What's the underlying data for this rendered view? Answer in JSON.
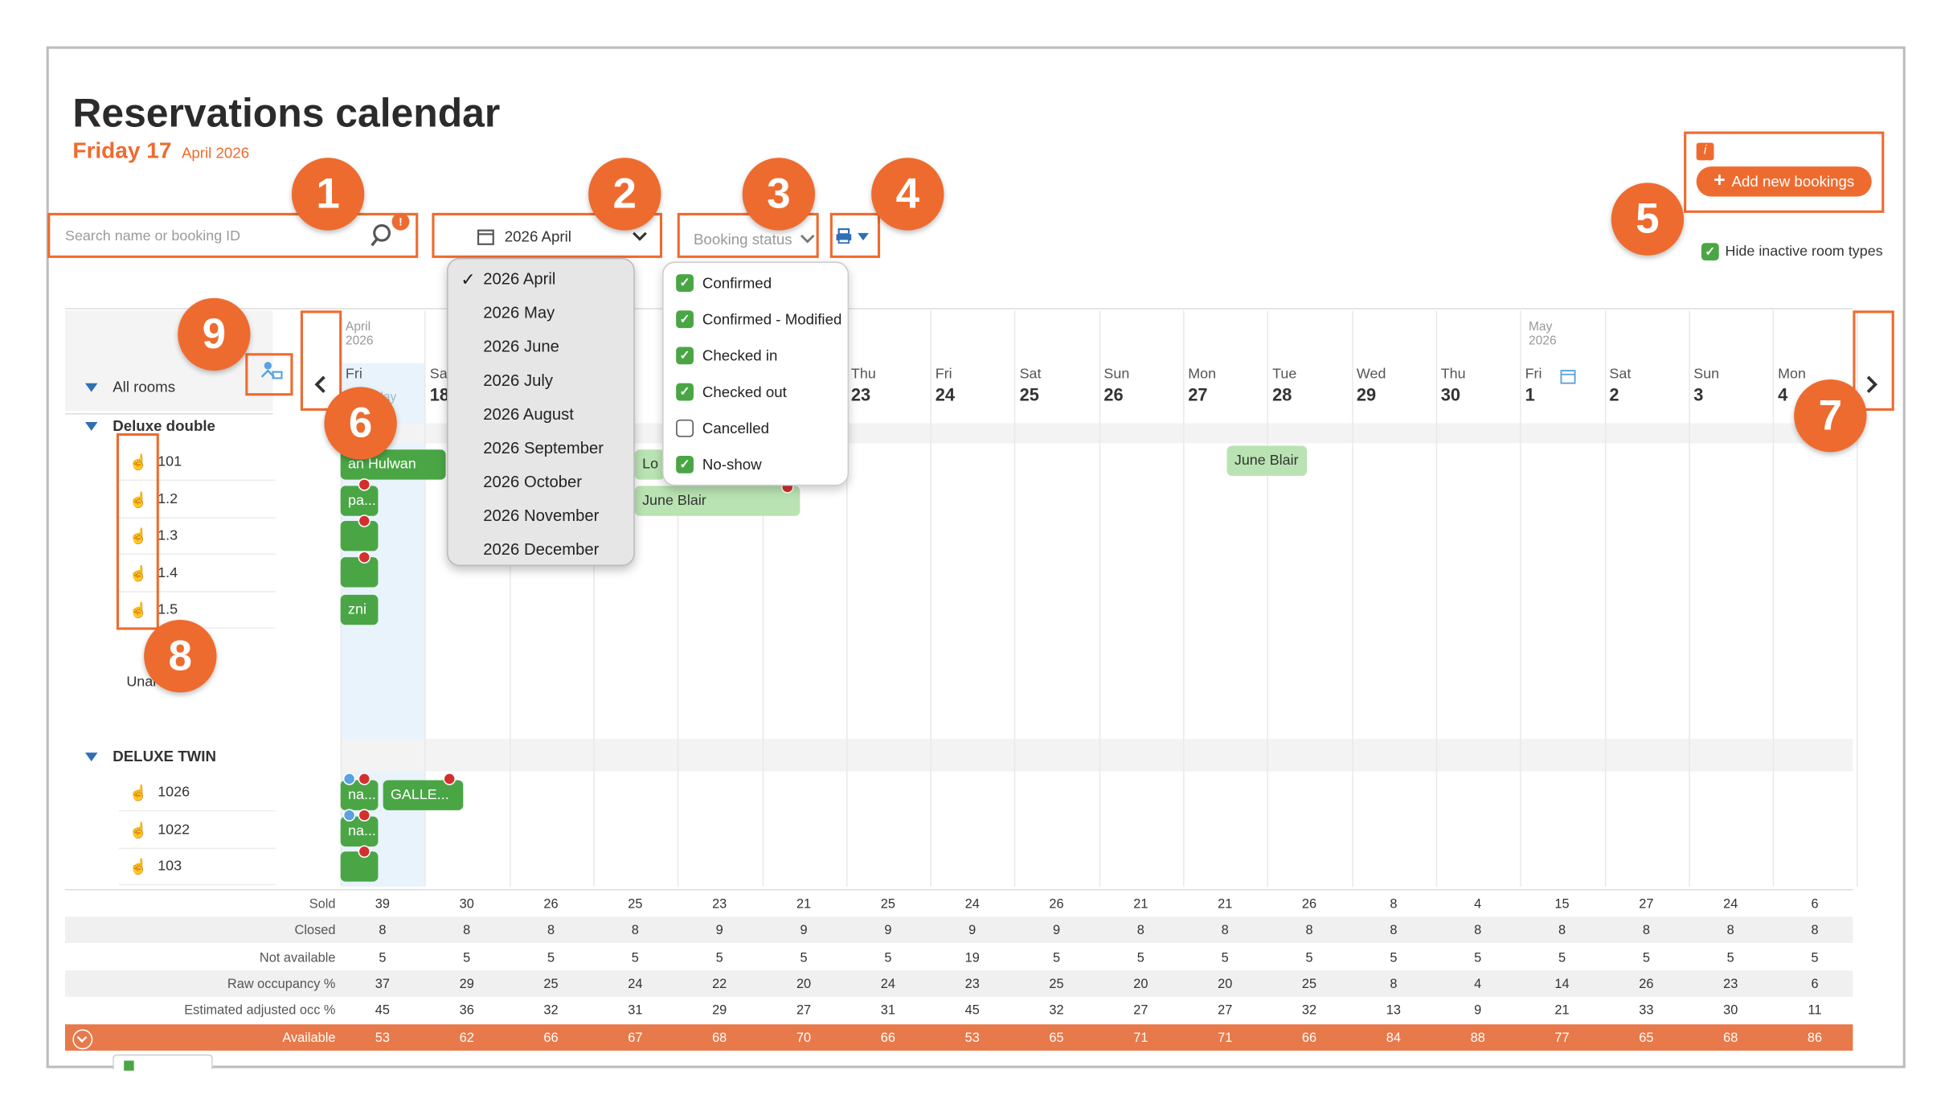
{
  "page": {
    "title": "Reservations calendar",
    "current_day": "Friday 17",
    "current_month": "April 2026"
  },
  "search": {
    "placeholder": "Search name or booking ID",
    "badge": "!"
  },
  "month_select": {
    "value": "2026 April",
    "options": [
      "2026 April",
      "2026 May",
      "2026 June",
      "2026 July",
      "2026 August",
      "2026 September",
      "2026 October",
      "2026 November",
      "2026 December"
    ],
    "selected_mark": "✓"
  },
  "booking_status": {
    "label": "Booking status",
    "options": [
      {
        "label": "Confirmed",
        "checked": true
      },
      {
        "label": "Confirmed - Modified",
        "checked": true
      },
      {
        "label": "Checked in",
        "checked": true
      },
      {
        "label": "Checked out",
        "checked": true
      },
      {
        "label": "Cancelled",
        "checked": false
      },
      {
        "label": "No-show",
        "checked": true
      }
    ]
  },
  "actions": {
    "info_badge": "i",
    "add_bookings": "Add new bookings",
    "hide_inactive": "Hide inactive room types"
  },
  "callouts": [
    "1",
    "2",
    "3",
    "4",
    "5",
    "6",
    "7",
    "8",
    "9"
  ],
  "calendar": {
    "month_left": "April",
    "year_left": "2026",
    "month_right": "May",
    "year_right": "2026",
    "today_sub": "Today",
    "days": [
      {
        "dow": "Fri",
        "num": ""
      },
      {
        "dow": "Sa",
        "num": "18"
      },
      {
        "dow": "",
        "num": ""
      },
      {
        "dow": "",
        "num": ""
      },
      {
        "dow": "",
        "num": ""
      },
      {
        "dow": "",
        "num": ""
      },
      {
        "dow": "Thu",
        "num": "23"
      },
      {
        "dow": "Fri",
        "num": "24"
      },
      {
        "dow": "Sat",
        "num": "25"
      },
      {
        "dow": "Sun",
        "num": "26"
      },
      {
        "dow": "Mon",
        "num": "27"
      },
      {
        "dow": "Tue",
        "num": "28"
      },
      {
        "dow": "Wed",
        "num": "29"
      },
      {
        "dow": "Thu",
        "num": "30"
      },
      {
        "dow": "Fri",
        "num": "1"
      },
      {
        "dow": "Sat",
        "num": "2"
      },
      {
        "dow": "Sun",
        "num": "3"
      },
      {
        "dow": "Mon",
        "num": "4"
      }
    ]
  },
  "rooms": {
    "all_rooms": "All rooms",
    "groups": [
      {
        "name": "Deluxe double",
        "rooms": [
          "101",
          "1.2",
          "1.3",
          "1.4",
          "1.5"
        ],
        "unallocated": "Unal"
      },
      {
        "name": "DELUXE TWIN",
        "rooms": [
          "1026",
          "1022",
          "103"
        ]
      }
    ]
  },
  "bookings": {
    "b1": "an Hulwan",
    "b2": "pa...",
    "b3": "zni",
    "b4": "Lo",
    "b5": "June Blair",
    "b6": "June Blair",
    "b7": "na...",
    "b8": "GALLE...",
    "b9": "na..."
  },
  "stats": {
    "rows": [
      {
        "label": "Sold",
        "values": [
          39,
          30,
          26,
          25,
          23,
          21,
          25,
          24,
          26,
          21,
          21,
          26,
          8,
          4,
          15,
          27,
          24,
          6
        ]
      },
      {
        "label": "Closed",
        "values": [
          8,
          8,
          8,
          8,
          9,
          9,
          9,
          9,
          9,
          8,
          8,
          8,
          8,
          8,
          8,
          8,
          8,
          8
        ]
      },
      {
        "label": "Not available",
        "values": [
          5,
          5,
          5,
          5,
          5,
          5,
          5,
          19,
          5,
          5,
          5,
          5,
          5,
          5,
          5,
          5,
          5,
          5
        ]
      },
      {
        "label": "Raw occupancy %",
        "values": [
          37,
          29,
          25,
          24,
          22,
          20,
          24,
          23,
          25,
          20,
          20,
          25,
          8,
          4,
          14,
          26,
          23,
          6
        ]
      },
      {
        "label": "Estimated adjusted occ %",
        "values": [
          45,
          36,
          32,
          31,
          29,
          27,
          31,
          45,
          32,
          27,
          27,
          32,
          13,
          9,
          21,
          33,
          30,
          11
        ]
      },
      {
        "label": "Available",
        "values": [
          53,
          62,
          66,
          67,
          68,
          70,
          66,
          53,
          65,
          71,
          71,
          66,
          84,
          88,
          77,
          65,
          68,
          86
        ]
      }
    ]
  },
  "icons": {
    "search": "search-icon",
    "calendar": "calendar-icon",
    "chevron": "chevron-down-icon",
    "print": "print-icon",
    "prev": "chevron-left-icon",
    "next": "chevron-right-icon",
    "hand": "hand-icon",
    "collapse": "triangle-down-icon"
  },
  "colors": {
    "accent": "#ee6b2f",
    "booking_green": "#4aa645",
    "booking_light": "#b9e3b2",
    "available_row": "#e8794a"
  }
}
